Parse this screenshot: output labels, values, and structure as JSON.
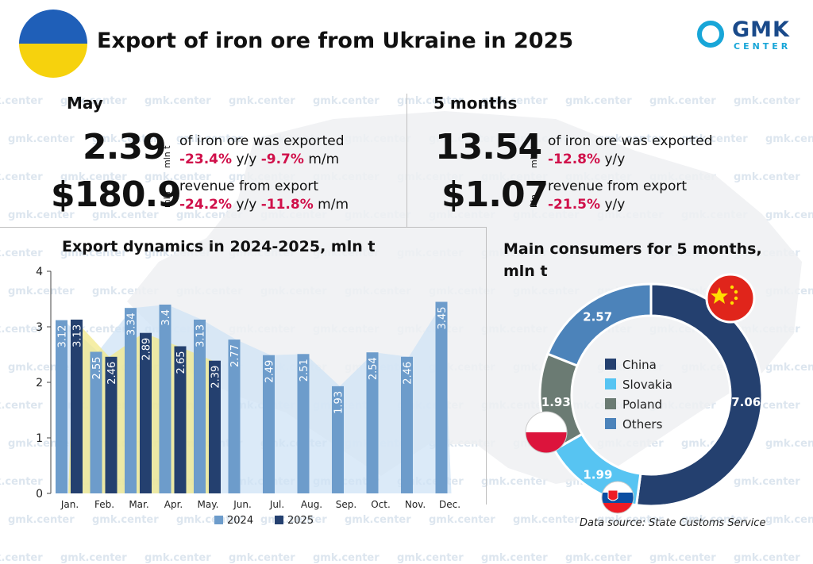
{
  "header": {
    "title": "Export of iron ore from Ukraine in 2025",
    "logo_main": "GMK",
    "logo_sub": "CENTER"
  },
  "watermark": "gmk.center",
  "may": {
    "heading": "May",
    "volume": "2.39",
    "volume_unit": "mln t",
    "volume_desc": "of iron ore was exported",
    "volume_yy": "-23.4%",
    "volume_yy_suffix": "y/y",
    "volume_mm": "-9.7%",
    "volume_mm_suffix": "m/m",
    "revenue": "$180.9",
    "revenue_unit": "mln",
    "revenue_desc": "revenue from export",
    "revenue_yy": "-24.2%",
    "revenue_yy_suffix": "y/y",
    "revenue_mm": "-11.8%",
    "revenue_mm_suffix": "m/m"
  },
  "five_months": {
    "heading": "5 months",
    "volume": "13.54",
    "volume_unit": "mln t",
    "volume_desc": "of iron ore was exported",
    "volume_yy": "-12.8%",
    "volume_yy_suffix": "y/y",
    "revenue": "$1.07",
    "revenue_unit": "bln",
    "revenue_desc": "revenue from export",
    "revenue_yy": "-21.5%",
    "revenue_yy_suffix": "y/y"
  },
  "colors": {
    "c2024": "#6d9ccb",
    "c2025": "#24406f",
    "area2024": "#cfe3f6",
    "area2025": "#f2e88a",
    "china": "#24406f",
    "slovakia": "#57c4f2",
    "poland": "#6b7b73",
    "others": "#4c83ba",
    "negative": "#d0104a"
  },
  "source": "Data source: State Customs Service",
  "chart_data": [
    {
      "type": "bar",
      "title": "Export dynamics in 2024-2025, mln t",
      "categories": [
        "Jan.",
        "Feb.",
        "Mar.",
        "Apr.",
        "May.",
        "Jun.",
        "Jul.",
        "Aug.",
        "Sep.",
        "Oct.",
        "Nov.",
        "Dec."
      ],
      "series": [
        {
          "name": "2024",
          "values": [
            3.12,
            2.55,
            3.34,
            3.4,
            3.13,
            2.77,
            2.49,
            2.51,
            1.93,
            2.54,
            2.46,
            3.45
          ]
        },
        {
          "name": "2025",
          "values": [
            3.13,
            2.46,
            2.89,
            2.65,
            2.39,
            null,
            null,
            null,
            null,
            null,
            null,
            null
          ]
        }
      ],
      "yticks": [
        0,
        1,
        2,
        3,
        4
      ],
      "ylim": [
        0,
        4
      ],
      "legend": "bottom",
      "grid": false
    },
    {
      "type": "pie",
      "variant": "donut",
      "title": "Main consumers for 5 months, mln t",
      "labels": [
        "China",
        "Slovakia",
        "Poland",
        "Others"
      ],
      "values": [
        7.06,
        1.99,
        1.93,
        2.57
      ],
      "legend": "center"
    }
  ]
}
